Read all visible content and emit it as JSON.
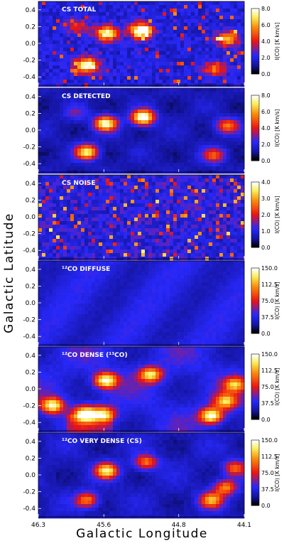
{
  "axis_titles": {
    "ylabel": "Galactic Latitude",
    "xlabel": "Galactic Longitude"
  },
  "chart_data": [
    {
      "type": "heatmap",
      "title": "CS TOTAL",
      "xlabel": "Galactic Longitude",
      "ylabel": "Galactic Latitude",
      "xlim": [
        46.3,
        44.1
      ],
      "ylim": [
        -0.5,
        0.5
      ],
      "x_ticks": [
        "46.3",
        "45.6",
        "44.8",
        "44.1"
      ],
      "y_ticks": [
        "0.4",
        "0.2",
        "0.0",
        "-0.2",
        "-0.4"
      ],
      "colorbar": {
        "label": "I(CO) [K km/s]",
        "ticks": [
          "8.0",
          "6.0",
          "4.0",
          "2.0",
          "0.0"
        ],
        "range": [
          0,
          8
        ]
      },
      "style": "speckle",
      "clumps": [
        {
          "l": 45.78,
          "b": -0.26,
          "amp": 6.5
        },
        {
          "l": 45.57,
          "b": 0.12,
          "amp": 6.0
        },
        {
          "l": 45.2,
          "b": 0.15,
          "amp": 7.5
        },
        {
          "l": 44.28,
          "b": 0.05,
          "amp": 4.5
        },
        {
          "l": 44.42,
          "b": -0.3,
          "amp": 3.5
        },
        {
          "l": 45.88,
          "b": 0.2,
          "amp": 2.5
        }
      ]
    },
    {
      "type": "heatmap",
      "title": "CS DETECTED",
      "xlabel": "Galactic Longitude",
      "ylabel": "Galactic Latitude",
      "xlim": [
        46.3,
        44.1
      ],
      "ylim": [
        -0.5,
        0.5
      ],
      "x_ticks": [
        "46.3",
        "45.6",
        "44.8",
        "44.1"
      ],
      "y_ticks": [
        "0.4",
        "0.2",
        "0.0",
        "-0.2",
        "-0.4"
      ],
      "colorbar": {
        "label": "I(CO) [K km/s]",
        "ticks": [
          "8.0",
          "6.0",
          "4.0",
          "2.0",
          "0.0"
        ],
        "range": [
          0,
          8
        ]
      },
      "style": "smooth",
      "clumps": [
        {
          "l": 45.78,
          "b": -0.26,
          "amp": 6.0
        },
        {
          "l": 45.58,
          "b": 0.08,
          "amp": 6.5
        },
        {
          "l": 45.18,
          "b": 0.15,
          "amp": 7.5
        },
        {
          "l": 44.28,
          "b": 0.05,
          "amp": 4.0
        },
        {
          "l": 44.42,
          "b": -0.3,
          "amp": 3.5
        },
        {
          "l": 45.9,
          "b": 0.2,
          "amp": 1.5
        }
      ]
    },
    {
      "type": "heatmap",
      "title": "CS NOISE",
      "xlabel": "Galactic Longitude",
      "ylabel": "Galactic Latitude",
      "xlim": [
        46.3,
        44.1
      ],
      "ylim": [
        -0.5,
        0.5
      ],
      "x_ticks": [
        "46.3",
        "45.6",
        "44.8",
        "44.1"
      ],
      "y_ticks": [
        "0.4",
        "0.2",
        "0.0",
        "-0.2",
        "-0.4"
      ],
      "colorbar": {
        "label": "I(CO) [K km/s]",
        "ticks": [
          "4.0",
          "3.0",
          "2.0",
          "1.0",
          "0.0"
        ],
        "range": [
          0,
          4
        ]
      },
      "style": "noise",
      "clumps": []
    },
    {
      "type": "heatmap",
      "title": "¹²CO DIFFUSE",
      "xlabel": "Galactic Longitude",
      "ylabel": "Galactic Latitude",
      "xlim": [
        46.3,
        44.1
      ],
      "ylim": [
        -0.5,
        0.5
      ],
      "x_ticks": [
        "46.3",
        "45.6",
        "44.8",
        "44.1"
      ],
      "y_ticks": [
        "0.4",
        "0.2",
        "0.0",
        "-0.2",
        "-0.4"
      ],
      "colorbar": {
        "label": "I(CO) [K km/s]",
        "ticks": [
          "150.0",
          "112.5",
          "75.0",
          "37.5",
          "0.0"
        ],
        "range": [
          0,
          150
        ]
      },
      "style": "diffuse",
      "clumps": []
    },
    {
      "type": "heatmap",
      "title": "¹²CO DENSE (¹³CO)",
      "xlabel": "Galactic Longitude",
      "ylabel": "Galactic Latitude",
      "xlim": [
        46.3,
        44.1
      ],
      "ylim": [
        -0.5,
        0.5
      ],
      "x_ticks": [
        "46.3",
        "45.6",
        "44.8",
        "44.1"
      ],
      "y_ticks": [
        "0.4",
        "0.2",
        "0.0",
        "-0.2",
        "-0.4"
      ],
      "colorbar": {
        "label": "I(CO) [K km/s]",
        "ticks": [
          "150.0",
          "112.5",
          "75.0",
          "37.5",
          "0.0"
        ],
        "range": [
          0,
          150
        ]
      },
      "style": "dense",
      "clumps": [
        {
          "l": 46.15,
          "b": -0.2,
          "amp": 110
        },
        {
          "l": 45.8,
          "b": -0.3,
          "amp": 120
        },
        {
          "l": 45.6,
          "b": -0.3,
          "amp": 95
        },
        {
          "l": 45.58,
          "b": 0.1,
          "amp": 120
        },
        {
          "l": 45.1,
          "b": 0.17,
          "amp": 100
        },
        {
          "l": 44.45,
          "b": -0.32,
          "amp": 120
        },
        {
          "l": 44.3,
          "b": -0.15,
          "amp": 90
        },
        {
          "l": 44.2,
          "b": 0.05,
          "amp": 80
        }
      ]
    },
    {
      "type": "heatmap",
      "title": "¹²CO VERY DENSE (CS)",
      "xlabel": "Galactic Longitude",
      "ylabel": "Galactic Latitude",
      "xlim": [
        46.3,
        44.1
      ],
      "ylim": [
        -0.5,
        0.5
      ],
      "x_ticks": [
        "46.3",
        "45.6",
        "44.8",
        "44.1"
      ],
      "y_ticks": [
        "0.4",
        "0.2",
        "0.0",
        "-0.2",
        "-0.4"
      ],
      "colorbar": {
        "label": "I(CO) [K km/s]",
        "ticks": [
          "150.0",
          "112.5",
          "75.0",
          "37.5",
          "0.0"
        ],
        "range": [
          0,
          150
        ]
      },
      "style": "verydense",
      "clumps": [
        {
          "l": 45.78,
          "b": -0.3,
          "amp": 80
        },
        {
          "l": 45.57,
          "b": 0.05,
          "amp": 110
        },
        {
          "l": 45.15,
          "b": 0.15,
          "amp": 75
        },
        {
          "l": 44.45,
          "b": -0.3,
          "amp": 90
        },
        {
          "l": 44.3,
          "b": -0.15,
          "amp": 80
        },
        {
          "l": 44.2,
          "b": 0.08,
          "amp": 70
        }
      ]
    }
  ]
}
